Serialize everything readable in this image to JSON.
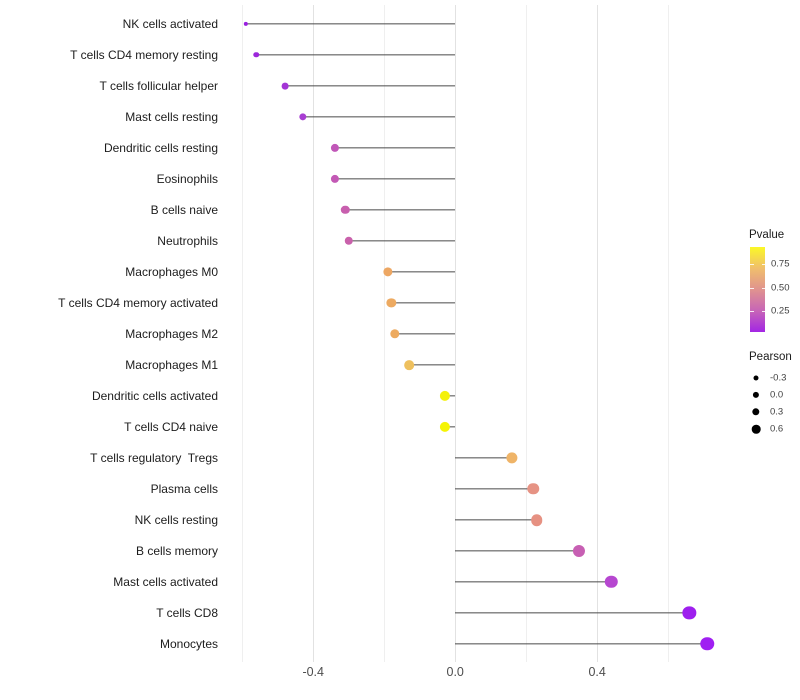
{
  "chart_data": {
    "type": "lollipop",
    "title": "",
    "xlabel": "",
    "ylabel": "",
    "grid": "vertical-only",
    "x_axis": {
      "range": [
        -0.657,
        0.777
      ],
      "major_ticks": [
        {
          "v": -0.4,
          "label": "-0.4"
        },
        {
          "v": 0.0,
          "label": "0.0"
        },
        {
          "v": 0.4,
          "label": "0.4"
        }
      ],
      "minor_ticks": [
        -0.6,
        -0.2,
        0.2,
        0.6
      ]
    },
    "items": [
      {
        "label": "NK cells activated",
        "pearson": -0.59,
        "pvalue": 0.02,
        "color": "#9a20e0"
      },
      {
        "label": "T cells CD4 memory resting",
        "pearson": -0.56,
        "pvalue": 0.04,
        "color": "#9c27db"
      },
      {
        "label": "T cells follicular helper",
        "pearson": -0.48,
        "pvalue": 0.07,
        "color": "#a335d6"
      },
      {
        "label": "Mast cells resting",
        "pearson": -0.43,
        "pvalue": 0.09,
        "color": "#a83ed2"
      },
      {
        "label": "Dendritic cells resting",
        "pearson": -0.34,
        "pvalue": 0.21,
        "color": "#c157b8"
      },
      {
        "label": "Eosinophils",
        "pearson": -0.34,
        "pvalue": 0.22,
        "color": "#c359b5"
      },
      {
        "label": "B cells naive",
        "pearson": -0.31,
        "pvalue": 0.25,
        "color": "#c85fae"
      },
      {
        "label": "Neutrophils",
        "pearson": -0.3,
        "pvalue": 0.26,
        "color": "#c961ab"
      },
      {
        "label": "Macrophages M0",
        "pearson": -0.19,
        "pvalue": 0.58,
        "color": "#eda763"
      },
      {
        "label": "T cells CD4 memory activated",
        "pearson": -0.18,
        "pvalue": 0.59,
        "color": "#edaa61"
      },
      {
        "label": "Macrophages M2",
        "pearson": -0.17,
        "pvalue": 0.6,
        "color": "#edaa5f"
      },
      {
        "label": "Macrophages M1",
        "pearson": -0.13,
        "pvalue": 0.7,
        "color": "#eec05e"
      },
      {
        "label": "Dendritic cells activated",
        "pearson": -0.03,
        "pvalue": 0.9,
        "color": "#f4f10c"
      },
      {
        "label": "T cells CD4 naive",
        "pearson": -0.03,
        "pvalue": 0.92,
        "color": "#f5f403"
      },
      {
        "label": "T cells regulatory  Tregs",
        "pearson": 0.16,
        "pvalue": 0.62,
        "color": "#efb468"
      },
      {
        "label": "Plasma cells",
        "pearson": 0.22,
        "pvalue": 0.51,
        "color": "#e69384"
      },
      {
        "label": "NK cells resting",
        "pearson": 0.23,
        "pvalue": 0.5,
        "color": "#e69182"
      },
      {
        "label": "B cells memory",
        "pearson": 0.35,
        "pvalue": 0.24,
        "color": "#c75fb3"
      },
      {
        "label": "Mast cells activated",
        "pearson": 0.44,
        "pvalue": 0.14,
        "color": "#b647d0"
      },
      {
        "label": "T cells CD8",
        "pearson": 0.66,
        "pvalue": 0.03,
        "color": "#9e1fee"
      },
      {
        "label": "Monocytes",
        "pearson": 0.71,
        "pvalue": 0.02,
        "color": "#a01ff2"
      }
    ],
    "legends": {
      "pvalue": {
        "title": "Pvalue",
        "range": [
          0.03,
          0.93
        ],
        "ticks": [
          {
            "value": 0.75,
            "label": "0.75"
          },
          {
            "value": 0.5,
            "label": "0.50"
          },
          {
            "value": 0.25,
            "label": "0.25"
          }
        ],
        "gradient_stops_bottom_to_top": [
          "#a326e4",
          "#c765b7",
          "#e0938f",
          "#f0be6c",
          "#fbf827"
        ]
      },
      "pearson": {
        "title": "Pearson",
        "entries": [
          {
            "label": "-0.3",
            "size": 5.0
          },
          {
            "label": "0.0",
            "size": 6.2
          },
          {
            "label": "0.3",
            "size": 7.4
          },
          {
            "label": "0.6",
            "size": 8.6
          }
        ],
        "dot_color": "#000000"
      }
    },
    "colors": {
      "stem": "#4a4a4a",
      "grid_major": "#e2e2e2",
      "grid_minor": "#efefef",
      "axis_tick_text": "#4d4d4d",
      "category_text": "#1c1c1c",
      "background": "#ffffff"
    }
  }
}
